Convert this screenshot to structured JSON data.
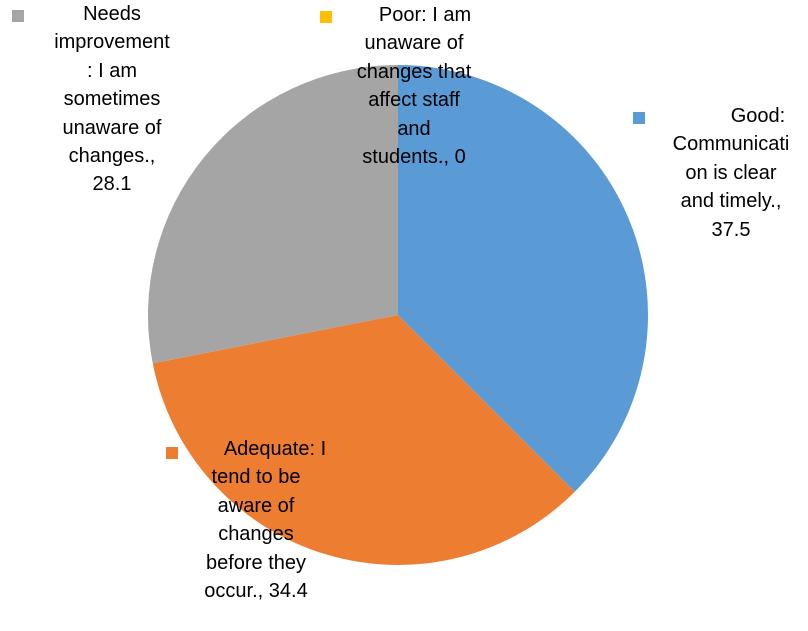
{
  "chart_data": {
    "type": "pie",
    "title": "",
    "slices": [
      {
        "category": "Good: Communication is clear and timely.",
        "value": 37.5,
        "color": "#5B9BD5",
        "label_lines": [
          "Good:",
          "Communicati",
          "on is clear",
          "and timely.,",
          "37.5"
        ]
      },
      {
        "category": "Adequate: I tend to be aware of changes before they occur.",
        "value": 34.4,
        "color": "#ED7D31",
        "label_lines": [
          "Adequate: I",
          "tend to be",
          "aware of",
          "changes",
          "before they",
          "occur., 34.4"
        ]
      },
      {
        "category": "Needs improvement: I am sometimes unaware of changes.",
        "value": 28.1,
        "color": "#A5A5A5",
        "label_lines": [
          "Needs",
          "improvement",
          ": I am",
          "sometimes",
          "unaware of",
          "changes.,",
          "28.1"
        ]
      },
      {
        "category": "Poor: I am unaware of changes that affect staff and students.",
        "value": 0,
        "color": "#FFC000",
        "label_lines": [
          "Poor: I am",
          "unaware of",
          "changes that",
          "affect staff",
          "and",
          "students., 0"
        ]
      }
    ],
    "start_angle_deg": 0,
    "direction": "clockwise",
    "data_labels": "category, value with legend key"
  }
}
